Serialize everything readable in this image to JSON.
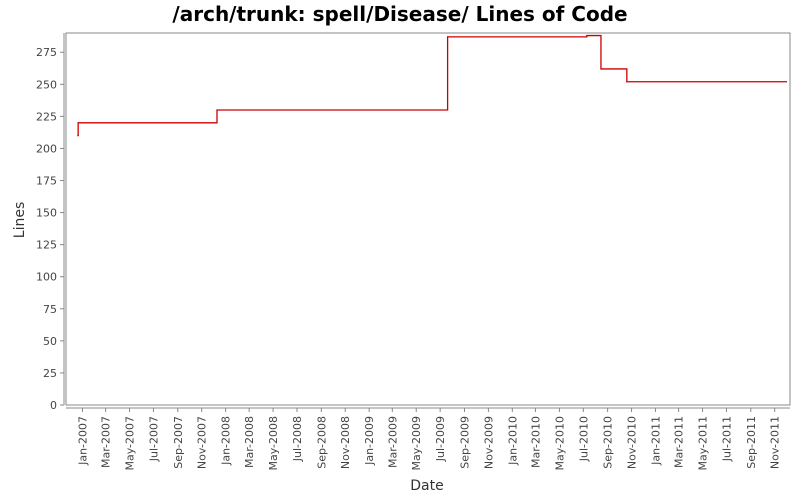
{
  "chart_data": {
    "type": "line",
    "title": "/arch/trunk: spell/Disease/ Lines of Code",
    "xlabel": "Date",
    "ylabel": "Lines",
    "ylim": [
      0,
      290
    ],
    "xlim": [
      "2006-11-20",
      "2011-12-10"
    ],
    "y_ticks": [
      0,
      25,
      50,
      75,
      100,
      125,
      150,
      175,
      200,
      225,
      250,
      275
    ],
    "x_ticks": [
      {
        "date": "2007-01-01",
        "label": "Jan-2007"
      },
      {
        "date": "2007-03-01",
        "label": "Mar-2007"
      },
      {
        "date": "2007-05-01",
        "label": "May-2007"
      },
      {
        "date": "2007-07-01",
        "label": "Jul-2007"
      },
      {
        "date": "2007-09-01",
        "label": "Sep-2007"
      },
      {
        "date": "2007-11-01",
        "label": "Nov-2007"
      },
      {
        "date": "2008-01-01",
        "label": "Jan-2008"
      },
      {
        "date": "2008-03-01",
        "label": "Mar-2008"
      },
      {
        "date": "2008-05-01",
        "label": "May-2008"
      },
      {
        "date": "2008-07-01",
        "label": "Jul-2008"
      },
      {
        "date": "2008-09-01",
        "label": "Sep-2008"
      },
      {
        "date": "2008-11-01",
        "label": "Nov-2008"
      },
      {
        "date": "2009-01-01",
        "label": "Jan-2009"
      },
      {
        "date": "2009-03-01",
        "label": "Mar-2009"
      },
      {
        "date": "2009-05-01",
        "label": "May-2009"
      },
      {
        "date": "2009-07-01",
        "label": "Jul-2009"
      },
      {
        "date": "2009-09-01",
        "label": "Sep-2009"
      },
      {
        "date": "2009-11-01",
        "label": "Nov-2009"
      },
      {
        "date": "2010-01-01",
        "label": "Jan-2010"
      },
      {
        "date": "2010-03-01",
        "label": "Mar-2010"
      },
      {
        "date": "2010-05-01",
        "label": "May-2010"
      },
      {
        "date": "2010-07-01",
        "label": "Jul-2010"
      },
      {
        "date": "2010-09-01",
        "label": "Sep-2010"
      },
      {
        "date": "2010-11-01",
        "label": "Nov-2010"
      },
      {
        "date": "2011-01-01",
        "label": "Jan-2011"
      },
      {
        "date": "2011-03-01",
        "label": "Mar-2011"
      },
      {
        "date": "2011-05-01",
        "label": "May-2011"
      },
      {
        "date": "2011-07-01",
        "label": "Jul-2011"
      },
      {
        "date": "2011-09-01",
        "label": "Sep-2011"
      },
      {
        "date": "2011-11-01",
        "label": "Nov-2011"
      }
    ],
    "grid": false,
    "series": [
      {
        "color": "#cc0000",
        "step": true,
        "points": [
          {
            "x": "2006-12-20",
            "y": 210
          },
          {
            "x": "2006-12-21",
            "y": 220
          },
          {
            "x": "2007-12-10",
            "y": 230
          },
          {
            "x": "2009-07-20",
            "y": 287
          },
          {
            "x": "2010-07-10",
            "y": 288
          },
          {
            "x": "2010-08-15",
            "y": 262
          },
          {
            "x": "2010-10-20",
            "y": 252
          },
          {
            "x": "2011-12-01",
            "y": 252
          }
        ]
      }
    ]
  }
}
